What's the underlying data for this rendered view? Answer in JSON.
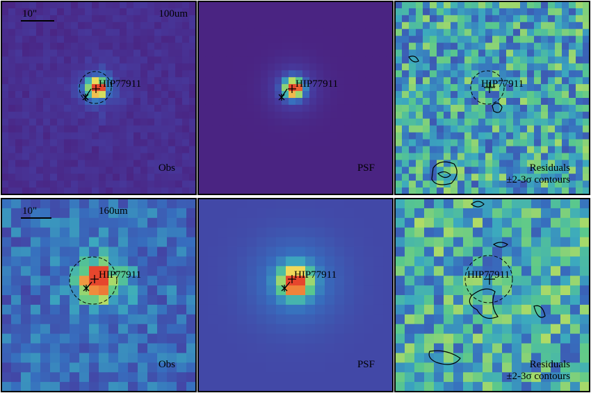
{
  "panels": [
    {
      "band": "100um",
      "scale_bar": "10\"",
      "target": "HIP77911",
      "label": "Obs"
    },
    {
      "target": "HIP77911",
      "label": "PSF"
    },
    {
      "target": "HIP77911",
      "label": "Residuals",
      "sublabel": "±2-3σ contours"
    },
    {
      "band": "160um",
      "scale_bar": "10\"",
      "target": "HIP77911",
      "label": "Obs"
    },
    {
      "target": "HIP77911",
      "label": "PSF"
    },
    {
      "target": "HIP77911",
      "label": "Residuals",
      "sublabel": "±2-3σ contours"
    }
  ]
}
